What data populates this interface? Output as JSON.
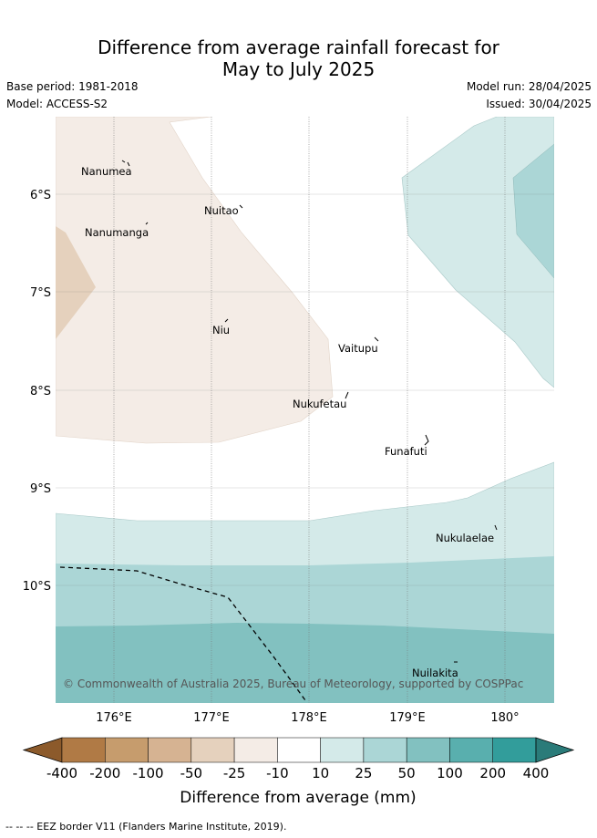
{
  "header": {
    "title_line1": "Difference from average rainfall forecast for",
    "title_line2": "May to July 2025",
    "base_period": "Base period: 1981-2018",
    "model": "Model: ACCESS-S2",
    "model_run": "Model run: 28/04/2025",
    "issued": "Issued: 30/04/2025"
  },
  "map": {
    "lat_labels": [
      "6°S",
      "7°S",
      "8°S",
      "9°S",
      "10°S"
    ],
    "lon_labels": [
      "176°E",
      "177°E",
      "178°E",
      "179°E",
      "180°"
    ],
    "places": [
      {
        "name": "Nanumea"
      },
      {
        "name": "Nuitao"
      },
      {
        "name": "Nanumanga"
      },
      {
        "name": "Niu"
      },
      {
        "name": "Vaitupu"
      },
      {
        "name": "Nukufetau"
      },
      {
        "name": "Funafuti"
      },
      {
        "name": "Nukulaelae"
      },
      {
        "name": "Nuilakita"
      }
    ],
    "copyright": "© Commonwealth of Australia 2025, Bureau of Meteorology, supported by COSPPac"
  },
  "colorbar": {
    "labels": [
      "-400",
      "-200",
      "-100",
      "-50",
      "-25",
      "-10",
      "10",
      "25",
      "50",
      "100",
      "200",
      "400"
    ],
    "colors": [
      "#8c5a2b",
      "#b07a45",
      "#c69c6d",
      "#d6b392",
      "#e5d1bd",
      "#f4ece6",
      "#ffffff",
      "#d4eae9",
      "#abd6d6",
      "#82c1c0",
      "#59afae",
      "#329d9b",
      "#2a7b79"
    ],
    "title": "Difference from average (mm)"
  },
  "footer": {
    "eez": "-- -- -- EEZ border V11 (Flanders Marine Institute, 2019)."
  }
}
